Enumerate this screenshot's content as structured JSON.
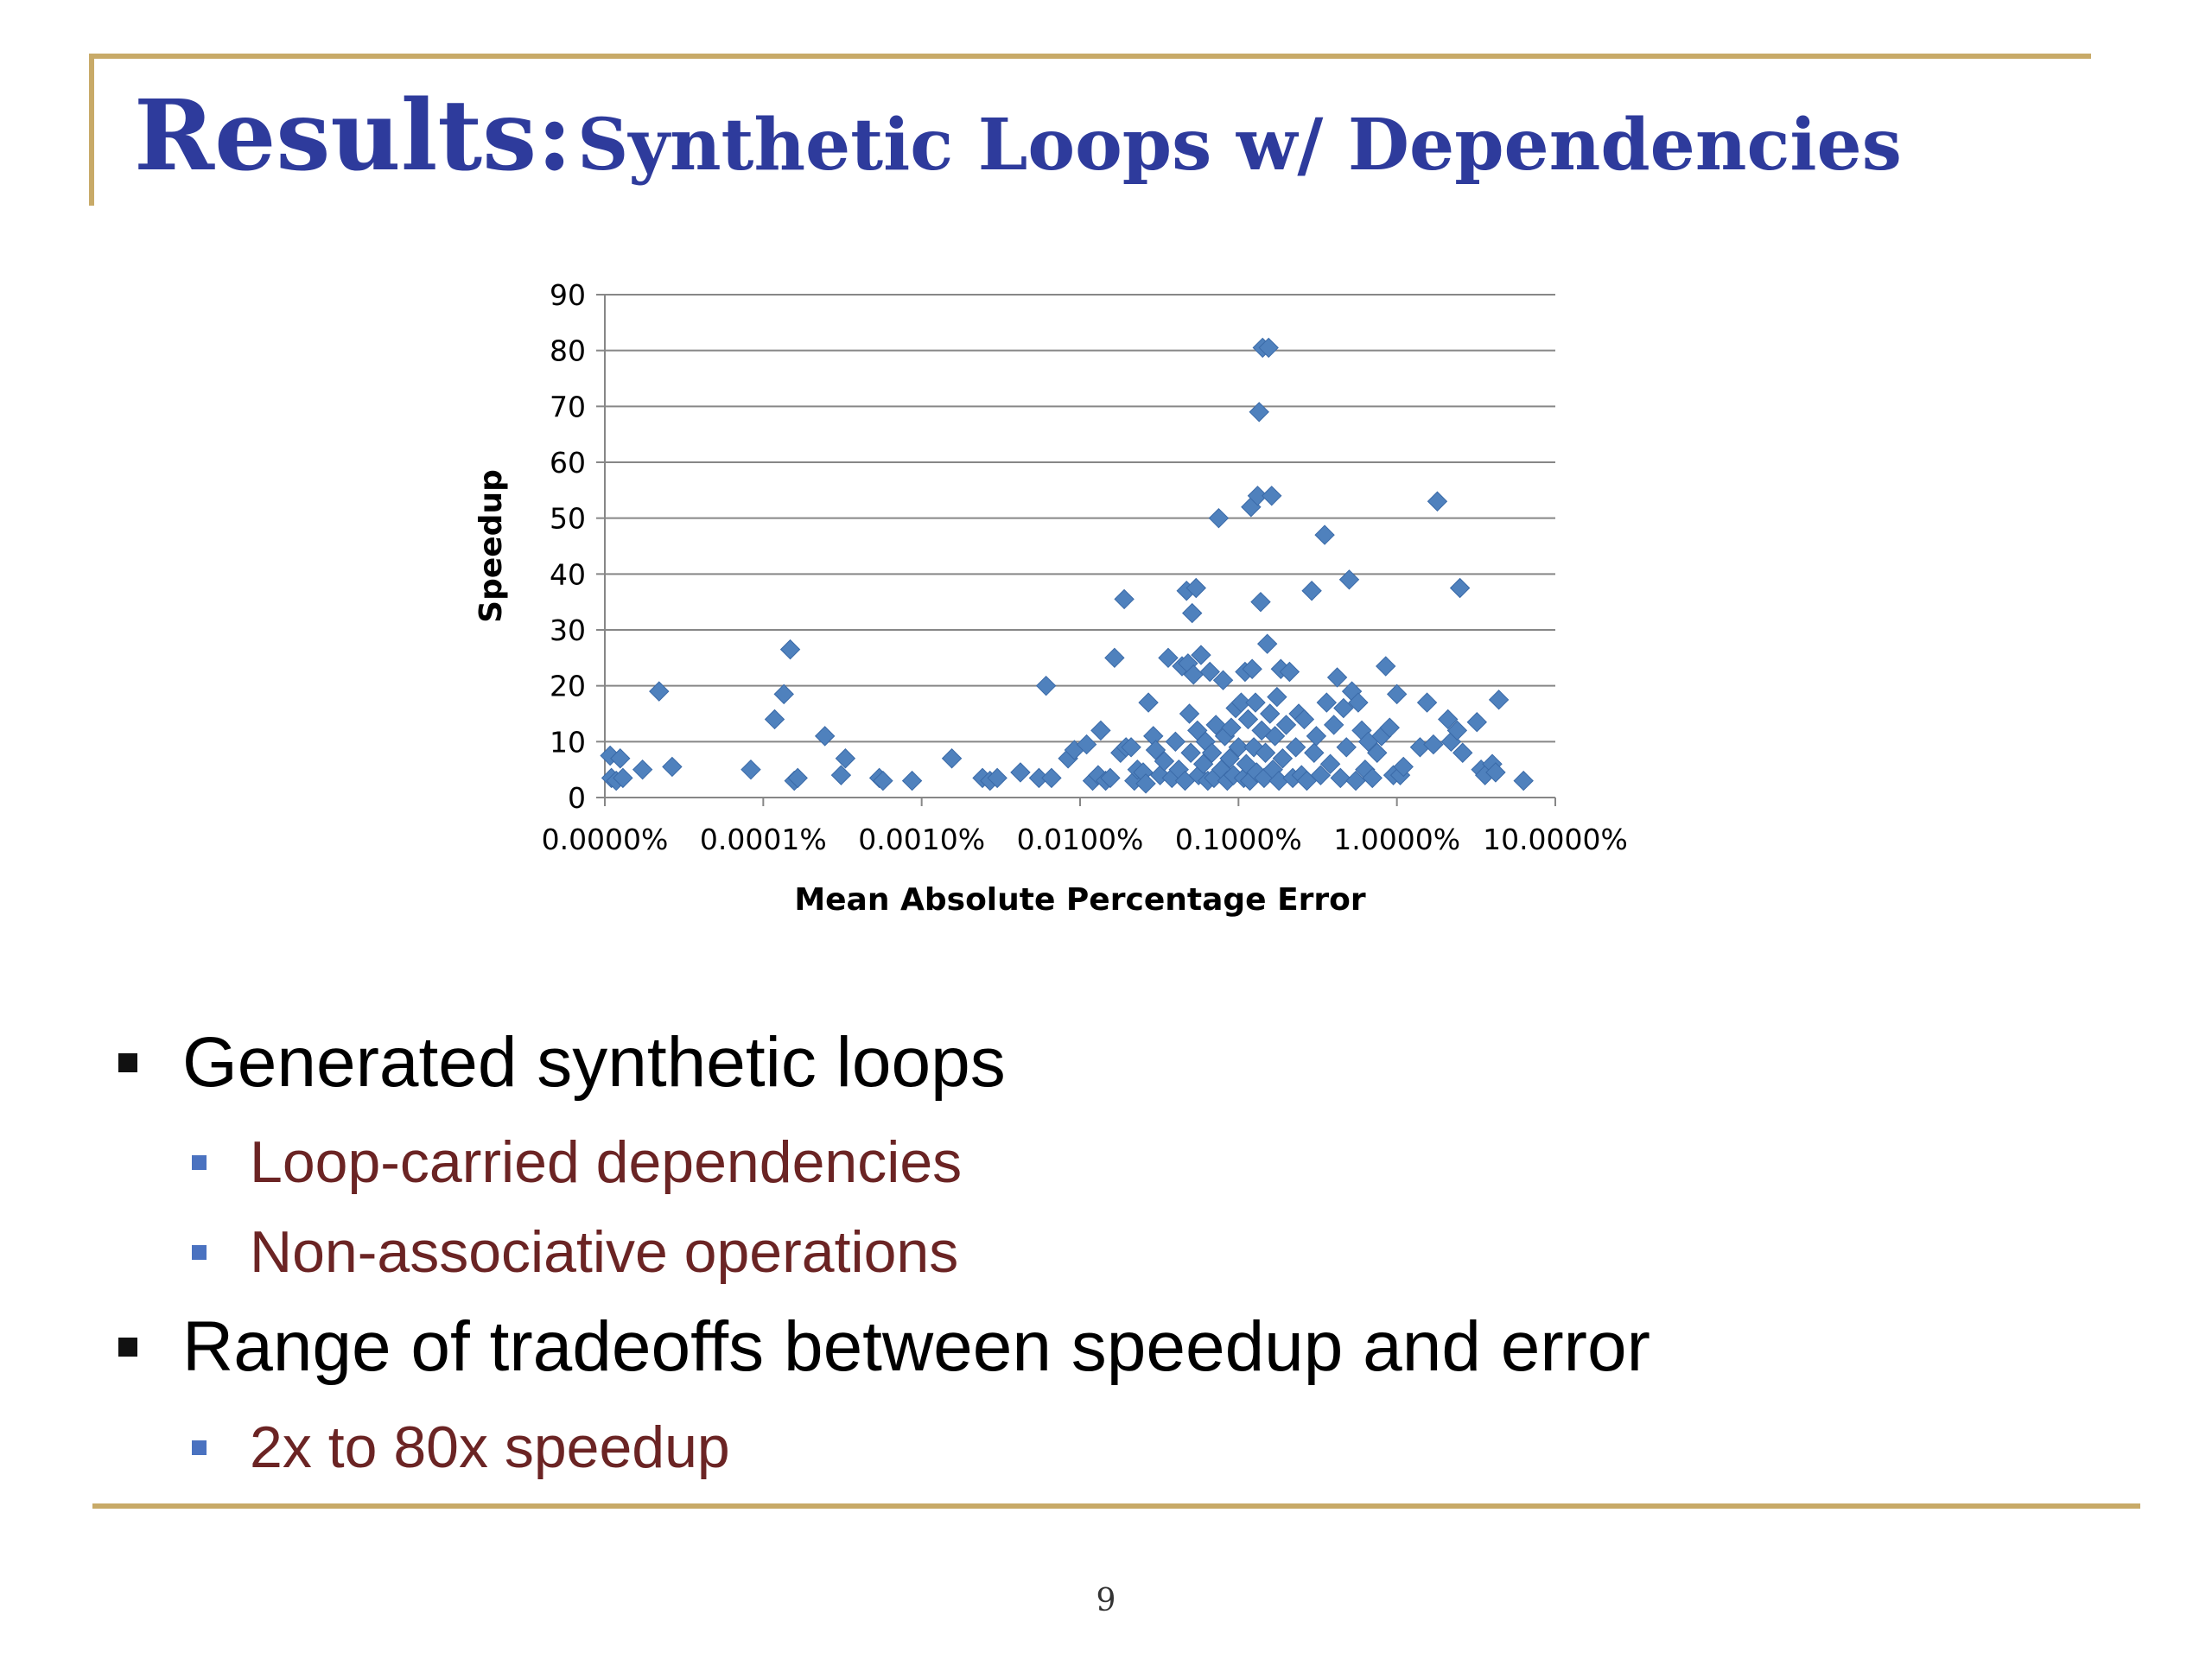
{
  "slide": {
    "title_main": "Results:",
    "title_sub": "Synthetic Loops w/ Dependencies",
    "page_number": "9",
    "accent_color": "#c8aa68",
    "title_color": "#2e3b9c"
  },
  "bullets": [
    {
      "text": "Generated synthetic loops",
      "sub": [
        "Loop-carried dependencies",
        "Non-associative operations"
      ]
    },
    {
      "text": "Range of tradeoffs between speedup and error",
      "sub": [
        "2x to 80x speedup"
      ]
    }
  ],
  "chart_data": {
    "type": "scatter",
    "xlabel": "Mean Absolute Percentage Error",
    "ylabel": "Speedup",
    "x_scale": "log",
    "x_tick_labels": [
      "0.0000%",
      "0.0001%",
      "0.0010%",
      "0.0100%",
      "0.1000%",
      "1.0000%",
      "10.0000%"
    ],
    "x_tick_values": [
      1e-05,
      0.0001,
      0.001,
      0.01,
      0.1,
      1,
      10
    ],
    "xlim": [
      1e-05,
      10
    ],
    "ylim": [
      0,
      90
    ],
    "y_ticks": [
      0,
      10,
      20,
      30,
      40,
      50,
      60,
      70,
      80,
      90
    ],
    "grid": "horizontal",
    "marker": "diamond",
    "marker_color": "#4f81bd",
    "series": [
      {
        "points": [
          [
            1.08e-05,
            7.5
          ],
          [
            1.1e-05,
            3.5
          ],
          [
            1.18e-05,
            3
          ],
          [
            1.25e-05,
            7
          ],
          [
            1.3e-05,
            3.5
          ],
          [
            1.73e-05,
            5
          ],
          [
            2.2e-05,
            19
          ],
          [
            2.66e-05,
            5.5
          ],
          [
            8.35e-05,
            5
          ],
          [
            0.000118,
            14
          ],
          [
            0.000135,
            18.5
          ],
          [
            0.000148,
            26.5
          ],
          [
            0.000157,
            3
          ],
          [
            0.000165,
            3.5
          ],
          [
            0.000245,
            11
          ],
          [
            0.00031,
            4
          ],
          [
            0.00033,
            7
          ],
          [
            0.00054,
            3.5
          ],
          [
            0.00057,
            3
          ],
          [
            0.00087,
            3
          ],
          [
            0.00155,
            7
          ],
          [
            0.00242,
            3.5
          ],
          [
            0.0027,
            3
          ],
          [
            0.003,
            3.5
          ],
          [
            0.0042,
            4.5
          ],
          [
            0.0055,
            3.5
          ],
          [
            0.0061,
            20
          ],
          [
            0.0066,
            3.5
          ],
          [
            0.0084,
            7
          ],
          [
            0.0092,
            8.5
          ],
          [
            0.011,
            9.5
          ],
          [
            0.012,
            3
          ],
          [
            0.013,
            4
          ],
          [
            0.0135,
            12
          ],
          [
            0.0145,
            3
          ],
          [
            0.0155,
            3.5
          ],
          [
            0.0165,
            25
          ],
          [
            0.018,
            8
          ],
          [
            0.0195,
            9
          ],
          [
            0.019,
            35.5
          ],
          [
            0.021,
            9
          ],
          [
            0.022,
            3
          ],
          [
            0.023,
            5
          ],
          [
            0.025,
            4.5
          ],
          [
            0.026,
            2.5
          ],
          [
            0.027,
            17
          ],
          [
            0.029,
            11
          ],
          [
            0.03,
            8.5
          ],
          [
            0.032,
            4
          ],
          [
            0.034,
            6.5
          ],
          [
            0.036,
            25
          ],
          [
            0.038,
            3.5
          ],
          [
            0.04,
            10
          ],
          [
            0.042,
            5
          ],
          [
            0.044,
            23.5
          ],
          [
            0.046,
            3
          ],
          [
            0.047,
            37
          ],
          [
            0.048,
            24
          ],
          [
            0.049,
            15
          ],
          [
            0.05,
            8
          ],
          [
            0.051,
            33
          ],
          [
            0.052,
            22
          ],
          [
            0.054,
            37.5
          ],
          [
            0.055,
            12
          ],
          [
            0.056,
            4
          ],
          [
            0.058,
            25.5
          ],
          [
            0.06,
            6
          ],
          [
            0.062,
            10
          ],
          [
            0.064,
            3
          ],
          [
            0.066,
            22.5
          ],
          [
            0.068,
            8
          ],
          [
            0.07,
            3.5
          ],
          [
            0.072,
            13
          ],
          [
            0.075,
            50
          ],
          [
            0.078,
            5
          ],
          [
            0.08,
            21
          ],
          [
            0.082,
            11
          ],
          [
            0.085,
            3
          ],
          [
            0.088,
            7
          ],
          [
            0.09,
            12.5
          ],
          [
            0.093,
            4
          ],
          [
            0.096,
            16
          ],
          [
            0.1,
            9
          ],
          [
            0.104,
            17
          ],
          [
            0.108,
            3.5
          ],
          [
            0.11,
            22.5
          ],
          [
            0.112,
            6
          ],
          [
            0.115,
            14
          ],
          [
            0.118,
            3
          ],
          [
            0.12,
            52
          ],
          [
            0.122,
            23
          ],
          [
            0.125,
            9
          ],
          [
            0.128,
            17
          ],
          [
            0.13,
            4.5
          ],
          [
            0.132,
            54
          ],
          [
            0.135,
            69
          ],
          [
            0.138,
            35
          ],
          [
            0.14,
            12
          ],
          [
            0.142,
            80.5
          ],
          [
            0.145,
            3.5
          ],
          [
            0.148,
            8
          ],
          [
            0.152,
            27.5
          ],
          [
            0.155,
            80.5
          ],
          [
            0.158,
            15
          ],
          [
            0.162,
            54
          ],
          [
            0.165,
            5
          ],
          [
            0.17,
            11
          ],
          [
            0.175,
            18
          ],
          [
            0.18,
            3
          ],
          [
            0.185,
            23
          ],
          [
            0.19,
            7
          ],
          [
            0.2,
            13
          ],
          [
            0.21,
            22.5
          ],
          [
            0.22,
            3.5
          ],
          [
            0.23,
            9
          ],
          [
            0.24,
            15
          ],
          [
            0.25,
            4
          ],
          [
            0.26,
            14
          ],
          [
            0.27,
            3
          ],
          [
            0.29,
            37
          ],
          [
            0.3,
            8
          ],
          [
            0.31,
            11
          ],
          [
            0.33,
            4
          ],
          [
            0.35,
            47
          ],
          [
            0.36,
            17
          ],
          [
            0.38,
            6
          ],
          [
            0.4,
            13
          ],
          [
            0.42,
            21.5
          ],
          [
            0.44,
            3.5
          ],
          [
            0.46,
            16
          ],
          [
            0.48,
            9
          ],
          [
            0.5,
            39
          ],
          [
            0.52,
            19
          ],
          [
            0.55,
            3
          ],
          [
            0.57,
            17
          ],
          [
            0.6,
            12
          ],
          [
            0.63,
            5
          ],
          [
            0.66,
            10
          ],
          [
            0.7,
            3.5
          ],
          [
            0.75,
            8
          ],
          [
            0.8,
            11
          ],
          [
            0.85,
            23.5
          ],
          [
            0.9,
            12.5
          ],
          [
            0.95,
            4
          ],
          [
            1.0,
            18.5
          ],
          [
            1.05,
            4
          ],
          [
            1.1,
            5.5
          ],
          [
            1.4,
            9
          ],
          [
            1.55,
            17
          ],
          [
            1.7,
            9.5
          ],
          [
            1.8,
            53
          ],
          [
            2.1,
            14
          ],
          [
            2.2,
            10
          ],
          [
            2.4,
            12
          ],
          [
            2.5,
            37.5
          ],
          [
            2.6,
            8
          ],
          [
            3.2,
            13.5
          ],
          [
            3.4,
            5
          ],
          [
            3.6,
            4
          ],
          [
            4.0,
            6
          ],
          [
            4.2,
            4.5
          ],
          [
            4.4,
            17.5
          ],
          [
            6.3,
            3
          ]
        ]
      }
    ]
  }
}
